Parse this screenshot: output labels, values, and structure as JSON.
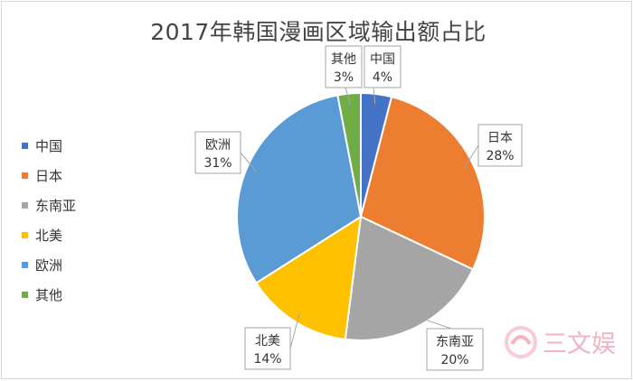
{
  "chart_data": {
    "type": "pie",
    "title": "2017年韩国漫画区域输出额占比",
    "legend_position": "left",
    "slices": [
      {
        "label": "中国",
        "value": 4,
        "display": "4%",
        "color": "#4472c4"
      },
      {
        "label": "日本",
        "value": 28,
        "display": "28%",
        "color": "#ed7d31"
      },
      {
        "label": "东南亚",
        "value": 20,
        "display": "20%",
        "color": "#a5a5a5"
      },
      {
        "label": "北美",
        "value": 14,
        "display": "14%",
        "color": "#ffc000"
      },
      {
        "label": "欧洲",
        "value": 31,
        "display": "31%",
        "color": "#5b9bd5"
      },
      {
        "label": "其他",
        "value": 3,
        "display": "3%",
        "color": "#70ad47"
      }
    ]
  },
  "watermark": {
    "text": "三文娱",
    "color": "#f2a6b8"
  }
}
